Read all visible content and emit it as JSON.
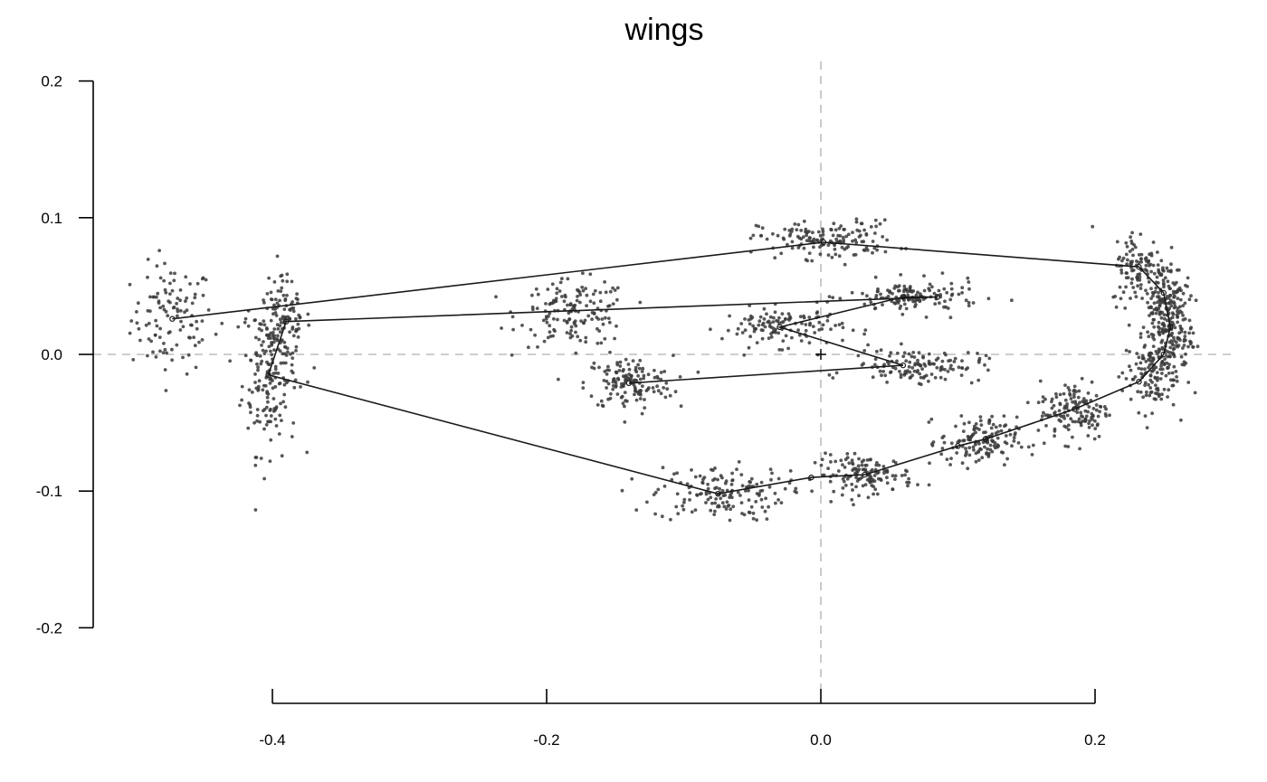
{
  "chart_data": {
    "type": "scatter",
    "title": "wings",
    "xlabel": "",
    "ylabel": "",
    "xlim": [
      -0.5,
      0.3
    ],
    "ylim": [
      -0.2,
      0.2
    ],
    "x_ticks": [
      "-0.4",
      "-0.2",
      "0.0",
      "0.2"
    ],
    "y_ticks": [
      "0.2",
      "0.1",
      "0.0",
      "-0.1",
      "-0.2"
    ],
    "x_tick_values": [
      -0.4,
      -0.2,
      0.0,
      0.2
    ],
    "y_tick_values": [
      0.2,
      0.1,
      0.0,
      -0.1,
      -0.2
    ],
    "reference_lines": {
      "x": 0.0,
      "y": 0.0,
      "style": "dashed",
      "color": "#bdbdbd"
    },
    "centroid": {
      "x": 0.0,
      "y": 0.0,
      "marker": "+"
    },
    "mean_shape_outline": [
      [
        -0.473,
        0.026
      ],
      [
        0.002,
        0.082
      ],
      [
        0.232,
        0.064
      ],
      [
        0.25,
        0.045
      ],
      [
        0.255,
        0.02
      ],
      [
        0.25,
        0.0
      ],
      [
        0.232,
        -0.02
      ],
      [
        0.185,
        -0.04
      ],
      [
        0.12,
        -0.062
      ],
      [
        0.1,
        -0.067
      ],
      [
        0.032,
        -0.088
      ],
      [
        -0.007,
        -0.09
      ],
      [
        -0.075,
        -0.102
      ],
      [
        -0.403,
        -0.015
      ],
      [
        -0.39,
        0.024
      ],
      [
        0.085,
        0.042
      ],
      [
        0.06,
        0.042
      ],
      [
        -0.03,
        0.02
      ],
      [
        0.06,
        -0.008
      ],
      [
        -0.14,
        -0.021
      ]
    ],
    "landmark_points": [
      {
        "x": -0.473,
        "y": 0.026,
        "sd_x": 0.015,
        "sd_y": 0.02,
        "n": 110
      },
      {
        "x": -0.402,
        "y": -0.012,
        "sd_x": 0.01,
        "sd_y": 0.03,
        "n": 180
      },
      {
        "x": -0.392,
        "y": 0.026,
        "sd_x": 0.01,
        "sd_y": 0.014,
        "n": 90
      },
      {
        "x": -0.18,
        "y": 0.03,
        "sd_x": 0.02,
        "sd_y": 0.012,
        "n": 150
      },
      {
        "x": -0.14,
        "y": -0.021,
        "sd_x": 0.016,
        "sd_y": 0.01,
        "n": 140
      },
      {
        "x": -0.075,
        "y": -0.102,
        "sd_x": 0.024,
        "sd_y": 0.01,
        "n": 150
      },
      {
        "x": 0.005,
        "y": 0.084,
        "sd_x": 0.025,
        "sd_y": 0.007,
        "n": 150
      },
      {
        "x": 0.032,
        "y": -0.088,
        "sd_x": 0.018,
        "sd_y": 0.007,
        "n": 140
      },
      {
        "x": -0.028,
        "y": 0.02,
        "sd_x": 0.022,
        "sd_y": 0.007,
        "n": 120
      },
      {
        "x": 0.068,
        "y": 0.042,
        "sd_x": 0.024,
        "sd_y": 0.006,
        "n": 130
      },
      {
        "x": 0.07,
        "y": -0.008,
        "sd_x": 0.024,
        "sd_y": 0.006,
        "n": 130
      },
      {
        "x": 0.115,
        "y": -0.064,
        "sd_x": 0.014,
        "sd_y": 0.009,
        "n": 140
      },
      {
        "x": 0.185,
        "y": -0.041,
        "sd_x": 0.013,
        "sd_y": 0.011,
        "n": 140
      },
      {
        "x": 0.232,
        "y": 0.064,
        "sd_x": 0.01,
        "sd_y": 0.014,
        "n": 100
      },
      {
        "x": 0.25,
        "y": 0.04,
        "sd_x": 0.009,
        "sd_y": 0.014,
        "n": 130
      },
      {
        "x": 0.255,
        "y": 0.015,
        "sd_x": 0.008,
        "sd_y": 0.015,
        "n": 140
      },
      {
        "x": 0.24,
        "y": -0.015,
        "sd_x": 0.01,
        "sd_y": 0.013,
        "n": 120
      }
    ],
    "grid": false,
    "colors": {
      "points": "#3a3a3a",
      "lines": "#1a1a1a",
      "reference": "#bdbdbd",
      "axes": "#000000"
    }
  }
}
